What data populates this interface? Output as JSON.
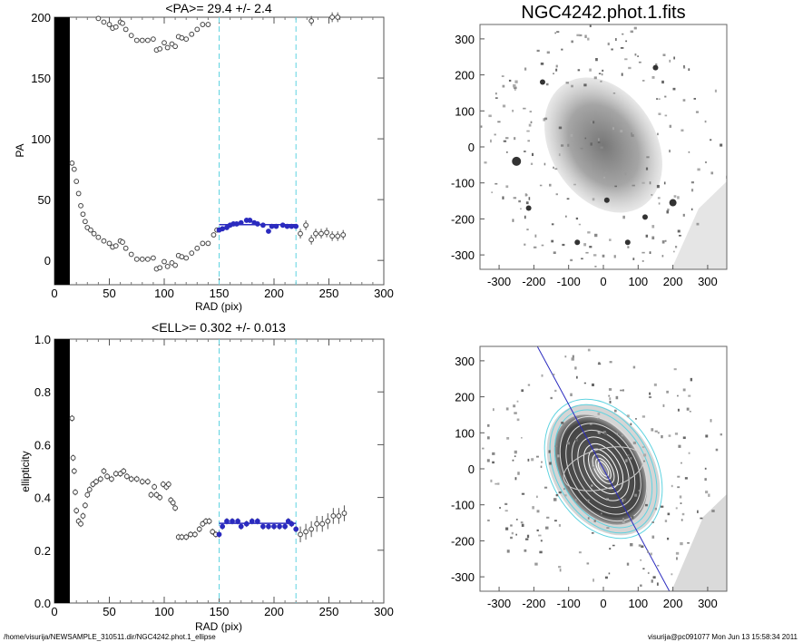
{
  "footer": {
    "path": "/home/visurija/NEWSAMPLE_310511.dir/NGC4242.phot.1_ellipse",
    "user_time": "visurija@pc091077  Mon Jun 13 15:58:34 2011"
  },
  "colors": {
    "fit": "#2b2bbf",
    "limits": "#5fd3e0",
    "points": "#444444"
  },
  "chart_data": [
    {
      "type": "scatter",
      "title": "<PA>=  29.4 +/-   2.4",
      "xlabel": "RAD (pix)",
      "ylabel": "PA",
      "xlim": [
        0,
        300
      ],
      "ylim": [
        -20,
        200
      ],
      "xticks": [
        "0",
        "50",
        "100",
        "150",
        "200",
        "250",
        "300"
      ],
      "yticks": [
        "0",
        "50",
        "100",
        "150",
        "200"
      ],
      "ytick_values": [
        0,
        50,
        100,
        150,
        200
      ],
      "saturated_region": [
        0,
        14
      ],
      "fit_range": [
        150,
        220
      ],
      "fit_value": 29.4,
      "wrap_offset": 180,
      "points": [
        [
          16,
          80
        ],
        [
          18,
          75
        ],
        [
          20,
          65
        ],
        [
          22,
          55
        ],
        [
          24,
          45
        ],
        [
          26,
          38
        ],
        [
          28,
          32
        ],
        [
          30,
          27
        ],
        [
          33,
          25
        ],
        [
          36,
          22
        ],
        [
          40,
          19
        ],
        [
          45,
          16
        ],
        [
          50,
          14
        ],
        [
          53,
          11
        ],
        [
          56,
          12
        ],
        [
          60,
          16
        ],
        [
          62,
          15
        ],
        [
          65,
          10
        ],
        [
          70,
          5
        ],
        [
          75,
          1
        ],
        [
          80,
          1
        ],
        [
          85,
          1
        ],
        [
          90,
          2
        ],
        [
          93,
          -7
        ],
        [
          96,
          -6
        ],
        [
          100,
          -1
        ],
        [
          103,
          -5
        ],
        [
          107,
          -2
        ],
        [
          110,
          -4
        ],
        [
          113,
          4
        ],
        [
          116,
          3
        ],
        [
          120,
          2
        ],
        [
          125,
          6
        ],
        [
          130,
          10
        ],
        [
          135,
          14
        ],
        [
          140,
          14
        ],
        [
          145,
          21
        ],
        [
          148,
          25
        ],
        [
          150,
          25
        ],
        [
          153,
          26
        ],
        [
          157,
          27
        ],
        [
          160,
          29
        ],
        [
          163,
          30
        ],
        [
          166,
          30
        ],
        [
          170,
          31
        ],
        [
          175,
          33
        ],
        [
          178,
          33
        ],
        [
          182,
          31
        ],
        [
          185,
          30
        ],
        [
          190,
          29
        ],
        [
          195,
          24
        ],
        [
          198,
          28
        ],
        [
          202,
          28
        ],
        [
          208,
          29
        ],
        [
          212,
          28
        ],
        [
          216,
          28
        ],
        [
          220,
          28
        ],
        [
          224,
          22
        ],
        [
          229,
          29
        ],
        [
          234,
          17
        ],
        [
          238,
          22
        ],
        [
          243,
          22
        ],
        [
          248,
          23
        ],
        [
          253,
          20
        ],
        [
          258,
          20
        ],
        [
          263,
          21
        ]
      ]
    },
    {
      "type": "scatter",
      "title": "<ELL>= 0.302 +/-  0.013",
      "xlabel": "RAD (pix)",
      "ylabel": "ellipticity",
      "xlim": [
        0,
        300
      ],
      "ylim": [
        0,
        1
      ],
      "xticks": [
        "0",
        "50",
        "100",
        "150",
        "200",
        "250",
        "300"
      ],
      "yticks": [
        "0.0",
        "0.2",
        "0.4",
        "0.6",
        "0.8",
        "1.0"
      ],
      "ytick_values": [
        0,
        0.2,
        0.4,
        0.6,
        0.8,
        1.0
      ],
      "saturated_region": [
        0,
        14
      ],
      "fit_range": [
        150,
        220
      ],
      "fit_value": 0.302,
      "points": [
        [
          16,
          0.7
        ],
        [
          17,
          0.55
        ],
        [
          18,
          0.5
        ],
        [
          19,
          0.42
        ],
        [
          20,
          0.35
        ],
        [
          22,
          0.31
        ],
        [
          24,
          0.3
        ],
        [
          26,
          0.33
        ],
        [
          28,
          0.37
        ],
        [
          30,
          0.41
        ],
        [
          32,
          0.43
        ],
        [
          35,
          0.45
        ],
        [
          38,
          0.46
        ],
        [
          42,
          0.47
        ],
        [
          45,
          0.5
        ],
        [
          48,
          0.48
        ],
        [
          52,
          0.47
        ],
        [
          56,
          0.49
        ],
        [
          60,
          0.49
        ],
        [
          63,
          0.5
        ],
        [
          66,
          0.48
        ],
        [
          70,
          0.47
        ],
        [
          75,
          0.47
        ],
        [
          80,
          0.46
        ],
        [
          85,
          0.46
        ],
        [
          88,
          0.41
        ],
        [
          91,
          0.44
        ],
        [
          93,
          0.41
        ],
        [
          96,
          0.4
        ],
        [
          99,
          0.45
        ],
        [
          102,
          0.44
        ],
        [
          104,
          0.45
        ],
        [
          106,
          0.39
        ],
        [
          108,
          0.38
        ],
        [
          110,
          0.36
        ],
        [
          113,
          0.25
        ],
        [
          116,
          0.25
        ],
        [
          120,
          0.25
        ],
        [
          124,
          0.26
        ],
        [
          128,
          0.26
        ],
        [
          132,
          0.28
        ],
        [
          135,
          0.3
        ],
        [
          138,
          0.31
        ],
        [
          141,
          0.31
        ],
        [
          144,
          0.27
        ],
        [
          147,
          0.26
        ],
        [
          150,
          0.26
        ],
        [
          153,
          0.29
        ],
        [
          157,
          0.31
        ],
        [
          162,
          0.31
        ],
        [
          167,
          0.31
        ],
        [
          170,
          0.29
        ],
        [
          175,
          0.3
        ],
        [
          180,
          0.31
        ],
        [
          185,
          0.31
        ],
        [
          190,
          0.29
        ],
        [
          195,
          0.29
        ],
        [
          200,
          0.29
        ],
        [
          205,
          0.29
        ],
        [
          210,
          0.29
        ],
        [
          213,
          0.31
        ],
        [
          216,
          0.3
        ],
        [
          220,
          0.28
        ],
        [
          224,
          0.26
        ],
        [
          229,
          0.27
        ],
        [
          234,
          0.28
        ],
        [
          239,
          0.3
        ],
        [
          244,
          0.3
        ],
        [
          249,
          0.31
        ],
        [
          254,
          0.33
        ],
        [
          259,
          0.33
        ],
        [
          264,
          0.34
        ]
      ]
    },
    {
      "type": "heatmap",
      "title": "NGC4242.phot.1.fits",
      "xlim": [
        -355,
        355
      ],
      "ylim": [
        -340,
        340
      ],
      "xticks": [
        "-300",
        "-200",
        "-100",
        "0",
        "100",
        "200",
        "300"
      ],
      "yticks": [
        "-300",
        "-200",
        "-100",
        "0",
        "100",
        "200",
        "300"
      ]
    },
    {
      "type": "heatmap",
      "title": "",
      "xlim": [
        -355,
        355
      ],
      "ylim": [
        -340,
        340
      ],
      "xticks": [
        "-300",
        "-200",
        "-100",
        "0",
        "100",
        "200",
        "300"
      ],
      "yticks": [
        "-300",
        "-200",
        "-100",
        "0",
        "100",
        "200",
        "300"
      ],
      "major_axis_line": [
        [
          -190,
          340
        ],
        [
          190,
          -340
        ]
      ]
    }
  ]
}
